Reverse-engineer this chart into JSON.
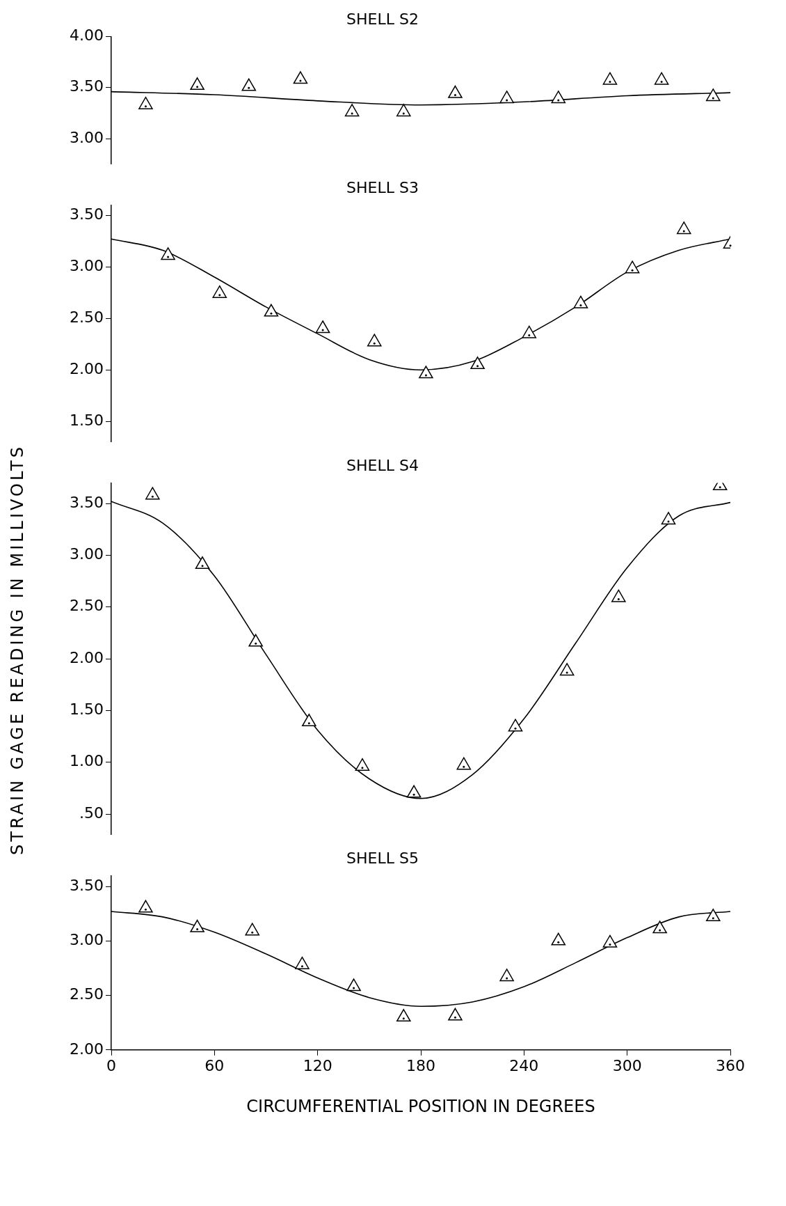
{
  "chart_data": [
    {
      "type": "scatter",
      "title": "SHELL S2",
      "grid": false,
      "legend": false,
      "tick_labels": "y",
      "xlim": [
        0,
        360
      ],
      "ylim": [
        2.75,
        4.0
      ],
      "yticks": [
        {
          "value": 3.0,
          "label": "3.00"
        },
        {
          "value": 3.5,
          "label": "3.50"
        },
        {
          "value": 4.0,
          "label": "4.00"
        }
      ],
      "series": [
        {
          "type": "scatter",
          "marker": "triangle",
          "color": "#000000",
          "x": [
            20,
            50,
            80,
            110,
            140,
            170,
            200,
            230,
            260,
            290,
            320,
            350
          ],
          "values": [
            3.33,
            3.52,
            3.51,
            3.58,
            3.26,
            3.26,
            3.44,
            3.39,
            3.39,
            3.57,
            3.57,
            3.41
          ]
        },
        {
          "type": "line",
          "marker": "none",
          "color": "#000000",
          "x": [
            0,
            60,
            120,
            180,
            240,
            300,
            360
          ],
          "values": [
            3.46,
            3.43,
            3.37,
            3.33,
            3.36,
            3.42,
            3.45
          ]
        }
      ]
    },
    {
      "type": "scatter",
      "title": "SHELL S3",
      "grid": false,
      "legend": false,
      "tick_labels": "y",
      "xlim": [
        0,
        360
      ],
      "ylim": [
        1.3,
        3.6
      ],
      "yticks": [
        {
          "value": 1.5,
          "label": "1.50"
        },
        {
          "value": 2.0,
          "label": "2.00"
        },
        {
          "value": 2.5,
          "label": "2.50"
        },
        {
          "value": 3.0,
          "label": "3.00"
        },
        {
          "value": 3.5,
          "label": "3.50"
        }
      ],
      "series": [
        {
          "type": "scatter",
          "marker": "triangle",
          "color": "#000000",
          "x": [
            33,
            63,
            93,
            123,
            153,
            183,
            213,
            243,
            273,
            303,
            333,
            360
          ],
          "values": [
            3.11,
            2.74,
            2.56,
            2.4,
            2.27,
            1.96,
            2.05,
            2.35,
            2.64,
            2.98,
            3.36,
            3.22
          ]
        },
        {
          "type": "line",
          "marker": "none",
          "color": "#000000",
          "x": [
            0,
            30,
            60,
            90,
            120,
            150,
            180,
            210,
            240,
            270,
            300,
            330,
            360
          ],
          "values": [
            3.27,
            3.16,
            2.9,
            2.61,
            2.35,
            2.1,
            2.0,
            2.08,
            2.32,
            2.61,
            2.95,
            3.16,
            3.27
          ]
        }
      ]
    },
    {
      "type": "scatter",
      "title": "SHELL S4",
      "ylabel": "STRAIN GAGE READING IN MILLIVOLTS",
      "grid": false,
      "legend": false,
      "tick_labels": "y",
      "xlim": [
        0,
        360
      ],
      "ylim": [
        0.3,
        3.7
      ],
      "yticks": [
        {
          "value": 0.5,
          "label": ".50"
        },
        {
          "value": 1.0,
          "label": "1.00"
        },
        {
          "value": 1.5,
          "label": "1.50"
        },
        {
          "value": 2.0,
          "label": "2.00"
        },
        {
          "value": 2.5,
          "label": "2.50"
        },
        {
          "value": 3.0,
          "label": "3.00"
        },
        {
          "value": 3.5,
          "label": "3.50"
        }
      ],
      "series": [
        {
          "type": "scatter",
          "marker": "triangle",
          "color": "#000000",
          "x": [
            24,
            53,
            84,
            115,
            146,
            176,
            205,
            235,
            265,
            295,
            324,
            354
          ],
          "values": [
            3.58,
            2.91,
            2.16,
            1.39,
            0.96,
            0.7,
            0.97,
            1.34,
            1.88,
            2.59,
            3.34,
            3.67
          ]
        },
        {
          "type": "line",
          "marker": "none",
          "color": "#000000",
          "x": [
            0,
            30,
            60,
            90,
            120,
            150,
            180,
            210,
            240,
            270,
            300,
            330,
            360
          ],
          "values": [
            3.52,
            3.31,
            2.8,
            2.04,
            1.31,
            0.84,
            0.65,
            0.88,
            1.42,
            2.15,
            2.88,
            3.38,
            3.51
          ]
        }
      ]
    },
    {
      "type": "scatter",
      "title": "SHELL S5",
      "xlabel": "CIRCUMFERENTIAL POSITION IN DEGREES",
      "grid": false,
      "legend": false,
      "xlim": [
        0,
        360
      ],
      "xticks": [
        0,
        60,
        120,
        180,
        240,
        300,
        360
      ],
      "ylim": [
        2.0,
        3.6
      ],
      "yticks": [
        {
          "value": 2.0,
          "label": "2.00"
        },
        {
          "value": 2.5,
          "label": "2.50"
        },
        {
          "value": 3.0,
          "label": "3.00"
        },
        {
          "value": 3.5,
          "label": "3.50"
        }
      ],
      "series": [
        {
          "type": "scatter",
          "marker": "triangle",
          "color": "#000000",
          "x": [
            20,
            50,
            82,
            111,
            141,
            170,
            200,
            230,
            260,
            290,
            319,
            350
          ],
          "values": [
            3.3,
            3.12,
            3.09,
            2.78,
            2.58,
            2.3,
            2.31,
            2.67,
            3.0,
            2.98,
            3.11,
            3.22
          ]
        },
        {
          "type": "line",
          "marker": "none",
          "color": "#000000",
          "x": [
            0,
            30,
            60,
            90,
            120,
            150,
            180,
            210,
            240,
            270,
            300,
            330,
            360
          ],
          "values": [
            3.27,
            3.22,
            3.08,
            2.88,
            2.66,
            2.48,
            2.4,
            2.44,
            2.58,
            2.8,
            3.03,
            3.22,
            3.27
          ]
        }
      ]
    }
  ]
}
